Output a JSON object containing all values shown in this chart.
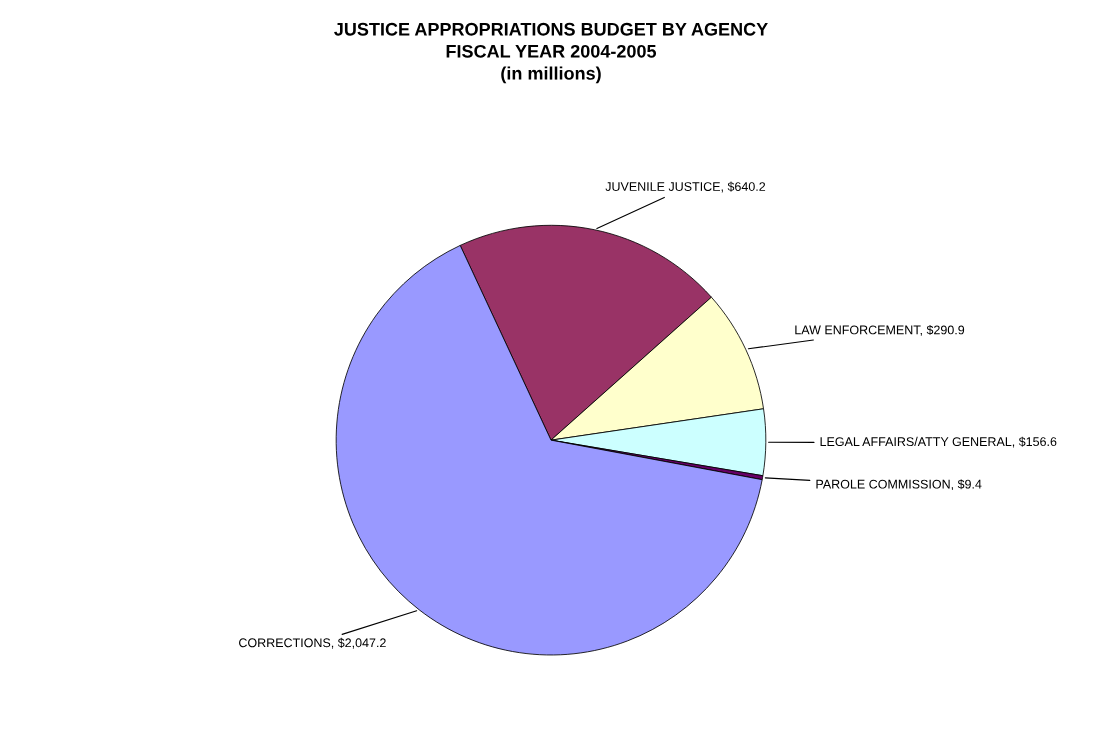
{
  "chart_data": {
    "type": "pie",
    "title": "JUSTICE APPROPRIATIONS BUDGET BY AGENCY\nFISCAL YEAR 2004-2005\n(in millions)",
    "categories": [
      "JUVENILE JUSTICE",
      "LAW ENFORCEMENT",
      "LEGAL AFFAIRS/ATTY GENERAL",
      "PAROLE COMMISSION",
      "CORRECTIONS"
    ],
    "values": [
      640.2,
      290.9,
      156.6,
      9.4,
      2047.2
    ],
    "value_labels": [
      "$640.2",
      "$290.9",
      "$156.6",
      "$9.4",
      "$2,047.2"
    ],
    "colors": [
      "#993366",
      "#ffffcc",
      "#ccffff",
      "#660066",
      "#9999ff"
    ]
  }
}
